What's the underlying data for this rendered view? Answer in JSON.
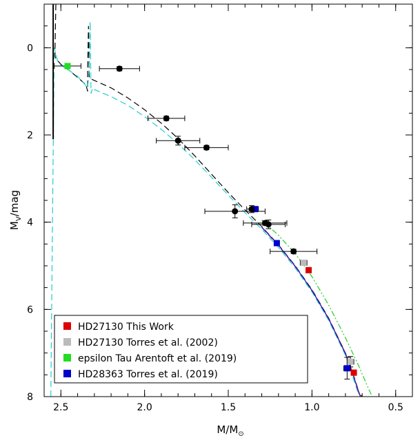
{
  "chart_data": {
    "type": "scatter",
    "xlabel_main": "M/M",
    "xlabel_sub": "⊙",
    "ylabel_main": "M",
    "ylabel_sub": "V",
    "ylabel_unit": "/mag",
    "xlim": [
      2.6,
      0.4
    ],
    "ylim": [
      -1.0,
      8.0
    ],
    "x_inverted": true,
    "y_inverted": true,
    "x_ticks": [
      2.5,
      2.0,
      1.5,
      1.0,
      0.5
    ],
    "x_tick_labels": [
      "2.5",
      "2.0",
      "1.5",
      "1.0",
      "0.5"
    ],
    "y_ticks": [
      0,
      2,
      4,
      6,
      8
    ],
    "y_tick_labels": [
      "0",
      "2",
      "4",
      "6",
      "8"
    ],
    "grid": false,
    "legend_position": "bottom-left",
    "series": [
      {
        "name": "HD27130 This Work",
        "color": "#dd0000",
        "marker": "square",
        "points": [
          {
            "x": 1.02,
            "y": 5.1,
            "xerr": 0.0,
            "yerr": 0.0
          },
          {
            "x": 0.75,
            "y": 7.45,
            "xerr": 0.0,
            "yerr": 0.0
          }
        ]
      },
      {
        "name": "HD27130 Torres et al. (2002)",
        "color": "#bbbbbb",
        "marker": "square",
        "points": [
          {
            "x": 1.05,
            "y": 4.93,
            "xerr": 0.02,
            "yerr": 0.05
          },
          {
            "x": 0.77,
            "y": 7.2,
            "xerr": 0.02,
            "yerr": 0.12
          }
        ]
      },
      {
        "name": "epsilon Tau Arentoft et al. (2019)",
        "color": "#22dd22",
        "marker": "square",
        "points": [
          {
            "x": 2.46,
            "y": 0.42,
            "xerr": 0.08,
            "yerr": 0.0
          }
        ]
      },
      {
        "name": "HD28363 Torres et al. (2019)",
        "color": "#0000cc",
        "marker": "square",
        "points": [
          {
            "x": 1.34,
            "y": 3.7,
            "xerr": 0.02,
            "yerr": 0.0
          },
          {
            "x": 1.21,
            "y": 4.48,
            "xerr": 0.0,
            "yerr": 0.0
          },
          {
            "x": 0.79,
            "y": 7.35,
            "xerr": 0.02,
            "yerr": 0.25
          }
        ]
      },
      {
        "name": "",
        "color": "#000000",
        "marker": "circle",
        "points": [
          {
            "x": 2.15,
            "y": 0.48,
            "xerr": 0.12,
            "yerr": 0.05
          },
          {
            "x": 1.87,
            "y": 1.62,
            "xerr": 0.11,
            "yerr": 0.05
          },
          {
            "x": 1.8,
            "y": 2.13,
            "xerr": 0.13,
            "yerr": 0.1
          },
          {
            "x": 1.63,
            "y": 2.29,
            "xerr": 0.13,
            "yerr": 0.05
          },
          {
            "x": 1.46,
            "y": 3.75,
            "xerr": 0.18,
            "yerr": 0.15
          },
          {
            "x": 1.36,
            "y": 3.7,
            "xerr": 0.03,
            "yerr": 0.08
          },
          {
            "x": 1.28,
            "y": 4.02,
            "xerr": 0.13,
            "yerr": 0.05
          },
          {
            "x": 1.26,
            "y": 4.05,
            "xerr": 0.1,
            "yerr": 0.1
          },
          {
            "x": 1.11,
            "y": 4.67,
            "xerr": 0.14,
            "yerr": 0.05
          }
        ]
      }
    ],
    "models": [
      {
        "style": "dashed",
        "color": "#000000",
        "x": [
          2.53,
          2.535,
          2.535,
          2.53,
          2.5,
          2.45,
          2.4,
          2.35,
          2.34,
          2.34,
          2.335,
          2.33,
          2.3,
          2.2,
          2.1,
          2.0,
          1.9,
          1.8,
          1.7,
          1.6,
          1.5,
          1.4,
          1.3,
          1.2,
          1.1,
          1.0,
          0.9,
          0.8,
          0.75,
          0.72,
          0.7
        ],
        "y": [
          -1.0,
          0.0,
          0.2,
          0.25,
          0.38,
          0.52,
          0.68,
          0.85,
          1.0,
          0.5,
          -0.5,
          0.7,
          0.75,
          0.92,
          1.15,
          1.42,
          1.73,
          2.08,
          2.48,
          2.9,
          3.32,
          3.72,
          4.1,
          4.52,
          5.0,
          5.55,
          6.2,
          7.0,
          7.55,
          7.9,
          8.0
        ]
      },
      {
        "style": "dashed",
        "color": "#22cccc",
        "x": [
          2.56,
          2.555,
          2.55,
          2.545,
          2.54,
          2.52,
          2.5,
          2.45,
          2.4,
          2.37,
          2.34,
          2.33,
          2.325,
          2.32,
          2.31,
          2.3,
          2.2,
          2.1,
          2.0,
          1.9,
          1.8,
          1.7,
          1.6,
          1.5,
          1.4,
          1.3,
          1.2,
          1.1,
          1.0,
          0.9,
          0.8,
          0.76,
          0.73,
          0.71
        ],
        "y": [
          8.0,
          6.0,
          4.0,
          2.0,
          0.0,
          0.3,
          0.4,
          0.52,
          0.66,
          0.78,
          0.92,
          0.45,
          -0.6,
          1.05,
          0.92,
          0.96,
          1.12,
          1.32,
          1.58,
          1.87,
          2.2,
          2.57,
          2.97,
          3.38,
          3.78,
          4.16,
          4.58,
          5.05,
          5.6,
          6.25,
          7.05,
          7.5,
          7.85,
          8.0
        ]
      },
      {
        "style": "dash-dot",
        "color": "#22cc22",
        "x": [
          1.3,
          1.2,
          1.1,
          1.0,
          0.9,
          0.8,
          0.72,
          0.67,
          0.64
        ],
        "y": [
          3.95,
          4.3,
          4.72,
          5.25,
          5.9,
          6.65,
          7.3,
          7.75,
          8.0
        ]
      },
      {
        "style": "dashed",
        "color": "#dd2222",
        "x": [
          1.3,
          1.2,
          1.1,
          1.0,
          0.9,
          0.8,
          0.75,
          0.72,
          0.71
        ],
        "y": [
          4.12,
          4.54,
          5.02,
          5.56,
          6.21,
          7.0,
          7.52,
          7.88,
          8.0
        ]
      },
      {
        "style": "solid",
        "color": "#2222cc",
        "x": [
          1.3,
          1.2,
          1.1,
          1.0,
          0.9,
          0.8,
          0.75,
          0.72,
          0.71
        ],
        "y": [
          4.11,
          4.53,
          5.01,
          5.57,
          6.22,
          7.02,
          7.55,
          7.92,
          8.0
        ]
      },
      {
        "style": "solid",
        "color": "#000000",
        "x": [
          2.546,
          2.546
        ],
        "y": [
          -1.0,
          2.1
        ]
      }
    ]
  }
}
